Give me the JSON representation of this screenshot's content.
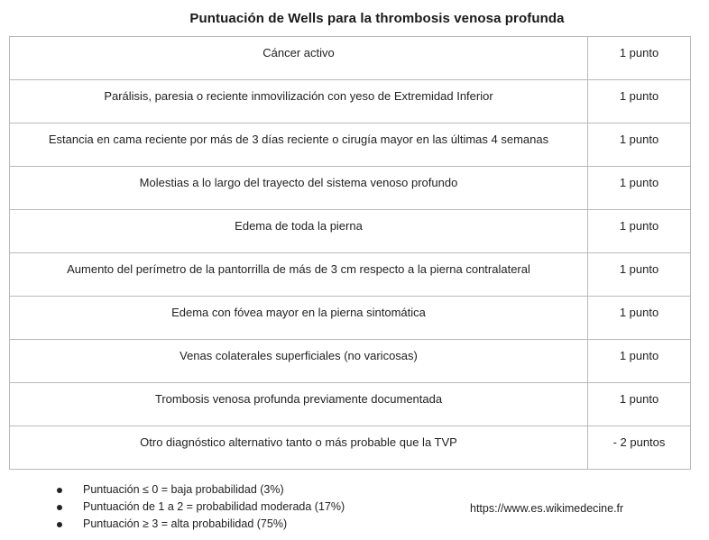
{
  "title": "Puntuación de Wells para la thrombosis venosa profunda",
  "criteria": [
    {
      "label": "Cáncer activo",
      "points": "1 punto"
    },
    {
      "label": "Parálisis, paresia o reciente inmovilización con yeso de Extremidad Inferior",
      "points": "1 punto"
    },
    {
      "label": "Estancia en cama reciente por más de 3 días reciente o cirugía mayor en las últimas 4 semanas",
      "points": "1 punto"
    },
    {
      "label": "Molestias a lo largo del trayecto del sistema venoso profundo",
      "points": "1 punto"
    },
    {
      "label": "Edema de toda la pierna",
      "points": "1 punto"
    },
    {
      "label": "Aumento del perímetro de la pantorrilla de más de 3 cm respecto a la pierna contralateral",
      "points": "1 punto"
    },
    {
      "label": "Edema con fóvea mayor en la pierna sintomática",
      "points": "1 punto"
    },
    {
      "label": "Venas colaterales superficiales (no varicosas)",
      "points": "1 punto"
    },
    {
      "label": "Trombosis venosa profunda previamente documentada",
      "points": "1 punto"
    },
    {
      "label": "Otro diagnóstico alternativo tanto o más probable que la TVP",
      "points": "- 2 puntos"
    }
  ],
  "legend": [
    "Puntuación ≤ 0 = baja probabilidad (3%)",
    "Puntuación de 1 a 2 = probabilidad moderada (17%)",
    "Puntuación ≥ 3 = alta probabilidad (75%)"
  ],
  "source": "https://www.es.wikimedecine.fr"
}
